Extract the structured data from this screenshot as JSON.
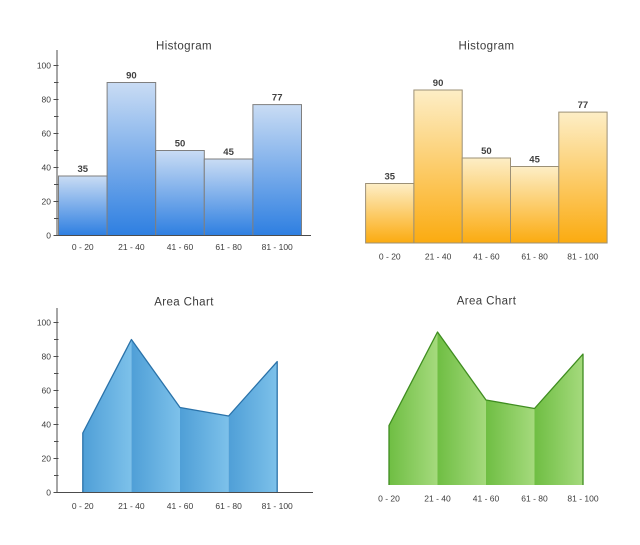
{
  "page": {
    "background": "#ffffff"
  },
  "chart_data": [
    {
      "id": "histogram-blue",
      "type": "bar",
      "title": "Histogram",
      "categories": [
        "0 - 20",
        "21 - 40",
        "41 - 60",
        "61 - 80",
        "81 - 100"
      ],
      "values": [
        35,
        90,
        50,
        45,
        77
      ],
      "ylim": [
        0,
        100
      ],
      "yticks": [
        0,
        20,
        40,
        60,
        80,
        100
      ],
      "yminor_step": 10,
      "show_y_axis": true,
      "show_x_axis": true,
      "show_value_labels": true,
      "grid": false,
      "legend": false,
      "colors": {
        "bar_top": "#c9dcf4",
        "bar_bottom": "#2e7fe1",
        "border": "#7f7f7f",
        "axis": "#4c4c4c",
        "text": "#3d3d3d"
      }
    },
    {
      "id": "histogram-orange",
      "type": "bar",
      "title": "Histogram",
      "categories": [
        "0 - 20",
        "21 - 40",
        "41 - 60",
        "61 - 80",
        "81 - 100"
      ],
      "values": [
        35,
        90,
        50,
        45,
        77
      ],
      "ylim": [
        0,
        100
      ],
      "show_y_axis": false,
      "show_x_axis": false,
      "show_value_labels": true,
      "grid": false,
      "legend": false,
      "colors": {
        "bar_top": "#fdeec6",
        "bar_bottom": "#fbab10",
        "border": "#9c9076",
        "text": "#3d3d3d"
      }
    },
    {
      "id": "area-chart-blue",
      "type": "area",
      "title": "Area Chart",
      "categories": [
        "0 - 20",
        "21 - 40",
        "41 - 60",
        "61 - 80",
        "81 - 100"
      ],
      "values": [
        35,
        90,
        50,
        45,
        77
      ],
      "ylim": [
        0,
        100
      ],
      "yticks": [
        0,
        20,
        40,
        60,
        80,
        100
      ],
      "yminor_step": 10,
      "show_y_axis": true,
      "show_x_axis": true,
      "show_value_labels": false,
      "grid": false,
      "legend": false,
      "colors": {
        "fill_left": "#4f9fd7",
        "fill_right": "#7dc1ea",
        "outline": "#2a72a9",
        "axis": "#4c4c4c",
        "text": "#3d3d3d"
      }
    },
    {
      "id": "area-chart-green",
      "type": "area",
      "title": "Area Chart",
      "categories": [
        "0 - 20",
        "21 - 40",
        "41 - 60",
        "61 - 80",
        "81 - 100"
      ],
      "values": [
        35,
        90,
        50,
        45,
        77
      ],
      "ylim": [
        0,
        100
      ],
      "show_y_axis": false,
      "show_x_axis": false,
      "show_value_labels": false,
      "grid": false,
      "legend": false,
      "colors": {
        "fill_left": "#6fbe43",
        "fill_right": "#a5da7d",
        "outline": "#3f8d20",
        "text": "#3d3d3d"
      }
    }
  ]
}
